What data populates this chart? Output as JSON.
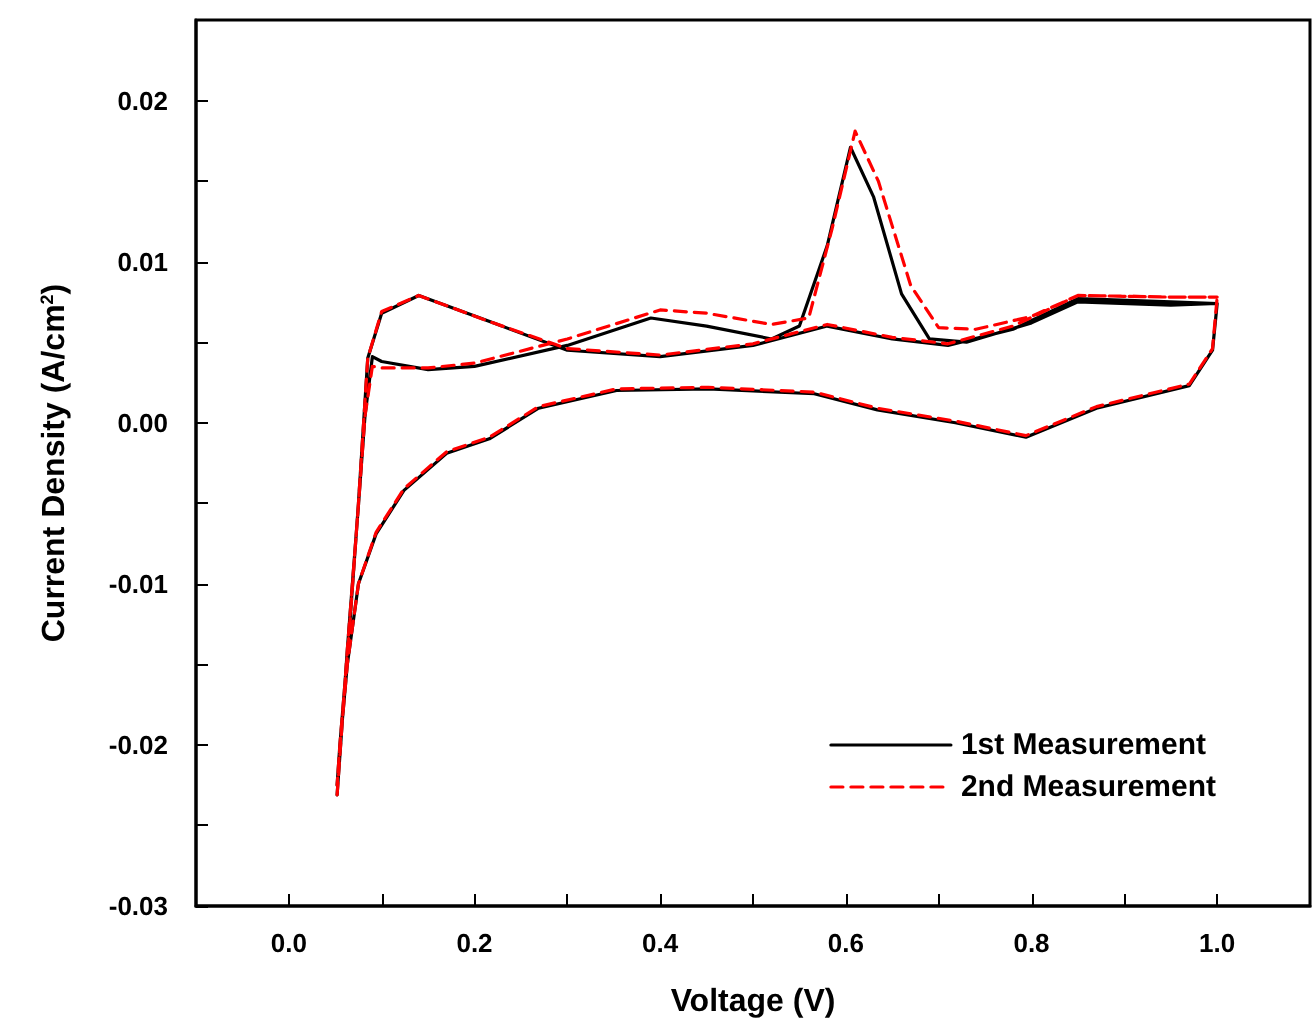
{
  "chart_data": {
    "type": "line",
    "xlabel": "Voltage (V)",
    "ylabel": "Current Density (A/cm$^{2}$)",
    "xlim": [
      -0.1,
      1.1
    ],
    "ylim": [
      -0.03,
      0.025
    ],
    "xticks": [
      {
        "value": 0,
        "label": "0.0"
      },
      {
        "value": 0.1,
        "label": null
      },
      {
        "value": 0.2,
        "label": "0.2"
      },
      {
        "value": 0.3,
        "label": null
      },
      {
        "value": 0.4,
        "label": "0.4"
      },
      {
        "value": 0.5,
        "label": null
      },
      {
        "value": 0.6,
        "label": "0.6"
      },
      {
        "value": 0.7,
        "label": null
      },
      {
        "value": 0.8,
        "label": "0.8"
      },
      {
        "value": 0.9,
        "label": null
      },
      {
        "value": 1,
        "label": "1.0"
      }
    ],
    "yticks": [
      {
        "value": -0.03,
        "label": "-0.03"
      },
      {
        "value": -0.025,
        "label": null
      },
      {
        "value": -0.02,
        "label": "-0.02"
      },
      {
        "value": -0.015,
        "label": null
      },
      {
        "value": -0.01,
        "label": "-0.01"
      },
      {
        "value": -0.005,
        "label": null
      },
      {
        "value": 0,
        "label": "0.00"
      },
      {
        "value": 0.005,
        "label": null
      },
      {
        "value": 0.01,
        "label": "0.01"
      },
      {
        "value": 0.015,
        "label": null
      },
      {
        "value": 0.02,
        "label": "0.02"
      }
    ],
    "grid": false,
    "legend": "bottom right",
    "marker": "none",
    "series": [
      {
        "name": "1st Measurement",
        "color": "#000000",
        "line_style": "solid",
        "x": [
          0.052,
          0.063,
          0.075,
          0.082,
          0.09,
          0.1,
          0.15,
          0.2,
          0.3,
          0.39,
          0.45,
          0.52,
          0.55,
          0.58,
          0.605,
          0.63,
          0.66,
          0.69,
          0.73,
          0.8,
          0.85,
          0.95,
          1.0,
          0.95,
          0.85,
          0.78,
          0.71,
          0.65,
          0.58,
          0.5,
          0.4,
          0.3,
          0.22,
          0.14,
          0.1,
          0.085,
          0.075,
          0.065,
          0.055,
          0.052,
          0.056,
          0.063,
          0.075,
          0.094,
          0.124,
          0.17,
          0.216,
          0.269,
          0.353,
          0.452,
          0.566,
          0.634,
          0.718,
          0.794,
          0.87,
          0.97,
          0.995,
          1.0
        ],
        "values": [
          -0.0231,
          -0.0141,
          -0.0051,
          0.0004,
          0.0041,
          0.0038,
          0.0033,
          0.0035,
          0.0048,
          0.0065,
          0.006,
          0.0052,
          0.006,
          0.011,
          0.0171,
          0.014,
          0.008,
          0.0052,
          0.005,
          0.0062,
          0.0075,
          0.0073,
          0.0074,
          0.0075,
          0.0077,
          0.0058,
          0.0048,
          0.0052,
          0.006,
          0.0048,
          0.0041,
          0.0045,
          0.0062,
          0.0079,
          0.0068,
          0.004,
          -0.005,
          -0.013,
          -0.02,
          -0.0225,
          -0.0195,
          -0.015,
          -0.01,
          -0.0069,
          -0.0042,
          -0.0019,
          -0.001,
          0.0009,
          0.002,
          0.0021,
          0.0018,
          0.0008,
          0.0,
          -0.0009,
          0.0009,
          0.0023,
          0.0045,
          0.0074
        ]
      },
      {
        "name": "2nd Measurement",
        "color": "#ff0000",
        "line_style": "dashed",
        "x": [
          0.052,
          0.063,
          0.075,
          0.082,
          0.09,
          0.1,
          0.15,
          0.2,
          0.3,
          0.4,
          0.45,
          0.52,
          0.56,
          0.585,
          0.61,
          0.635,
          0.67,
          0.7,
          0.74,
          0.8,
          0.85,
          0.95,
          1.0,
          0.95,
          0.85,
          0.78,
          0.71,
          0.65,
          0.58,
          0.5,
          0.4,
          0.3,
          0.22,
          0.14,
          0.1,
          0.085,
          0.075,
          0.065,
          0.055,
          0.052,
          0.056,
          0.063,
          0.075,
          0.094,
          0.124,
          0.17,
          0.216,
          0.269,
          0.353,
          0.452,
          0.566,
          0.634,
          0.718,
          0.794,
          0.87,
          0.97,
          0.995,
          1.0
        ],
        "values": [
          -0.0231,
          -0.0141,
          -0.0051,
          0.0004,
          0.0035,
          0.0034,
          0.0034,
          0.0037,
          0.0052,
          0.007,
          0.0068,
          0.0061,
          0.0065,
          0.012,
          0.0181,
          0.015,
          0.0085,
          0.0059,
          0.0058,
          0.0066,
          0.0079,
          0.0078,
          0.0078,
          0.0078,
          0.0079,
          0.006,
          0.0049,
          0.0053,
          0.0061,
          0.0049,
          0.0042,
          0.0046,
          0.0062,
          0.0079,
          0.0069,
          0.004,
          -0.005,
          -0.013,
          -0.02,
          -0.0225,
          -0.0195,
          -0.015,
          -0.01,
          -0.0068,
          -0.0041,
          -0.0018,
          -0.0009,
          0.001,
          0.0021,
          0.0022,
          0.0019,
          0.0009,
          0.0001,
          -0.0008,
          0.001,
          0.0024,
          0.0046,
          0.0078
        ]
      }
    ]
  }
}
